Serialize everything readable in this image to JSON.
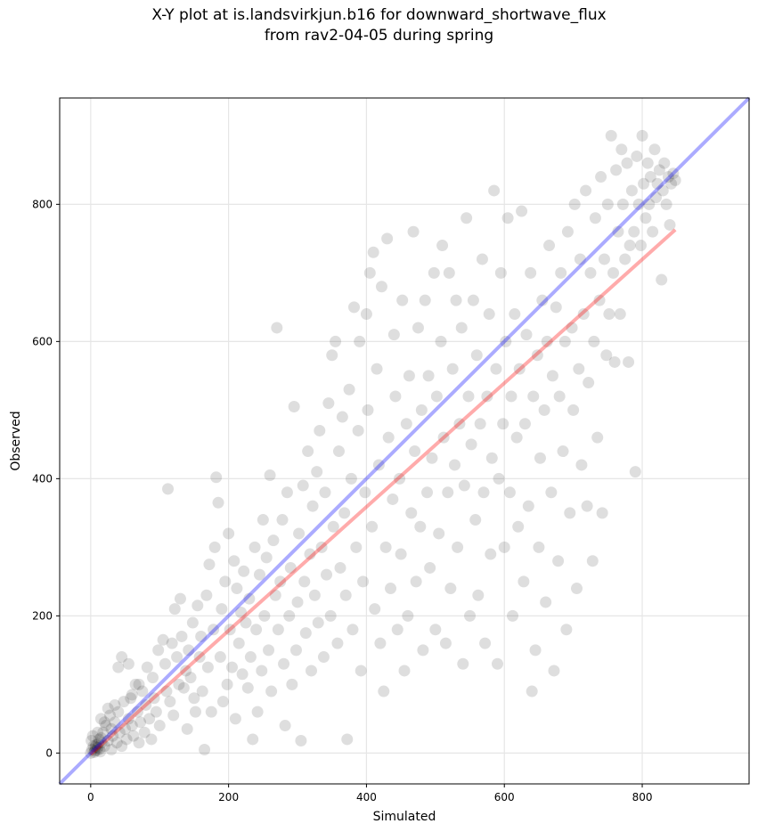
{
  "chart_data": {
    "type": "scatter",
    "title_line1": "X-Y plot at is.landsvirkjun.b16 for downward_shortwave_flux",
    "title_line2": "from rav2-04-05 during spring",
    "xlabel": "Simulated",
    "ylabel": "Observed",
    "xlim": [
      -45,
      955
    ],
    "ylim": [
      -45,
      955
    ],
    "xticks": [
      0,
      200,
      400,
      600,
      800
    ],
    "yticks": [
      0,
      200,
      400,
      600,
      800
    ],
    "grid": true,
    "point_color": "#000000",
    "point_opacity": 0.13,
    "one_to_one_line": {
      "color": "#0000ff",
      "opacity": 0.33,
      "from": [
        -45,
        -45
      ],
      "to": [
        955,
        955
      ]
    },
    "fit_line": {
      "color": "#ff0000",
      "opacity": 0.33,
      "from": [
        0,
        -2
      ],
      "to": [
        848,
        763
      ]
    },
    "points": [
      [
        0,
        0
      ],
      [
        2,
        5
      ],
      [
        4,
        10
      ],
      [
        1,
        18
      ],
      [
        6,
        3
      ],
      [
        8,
        12
      ],
      [
        10,
        8
      ],
      [
        12,
        20
      ],
      [
        3,
        25
      ],
      [
        14,
        2
      ],
      [
        16,
        15
      ],
      [
        5,
        1
      ],
      [
        7,
        9
      ],
      [
        9,
        4
      ],
      [
        11,
        14
      ],
      [
        13,
        6
      ],
      [
        15,
        22
      ],
      [
        18,
        30
      ],
      [
        20,
        10
      ],
      [
        22,
        40
      ],
      [
        25,
        18
      ],
      [
        28,
        55
      ],
      [
        30,
        5
      ],
      [
        32,
        25
      ],
      [
        35,
        45
      ],
      [
        38,
        15
      ],
      [
        40,
        60
      ],
      [
        42,
        30
      ],
      [
        45,
        10
      ],
      [
        48,
        75
      ],
      [
        50,
        35
      ],
      [
        52,
        20
      ],
      [
        55,
        50
      ],
      [
        58,
        80
      ],
      [
        60,
        40
      ],
      [
        62,
        25
      ],
      [
        65,
        100
      ],
      [
        68,
        60
      ],
      [
        70,
        15
      ],
      [
        72,
        45
      ],
      [
        75,
        90
      ],
      [
        78,
        30
      ],
      [
        80,
        70
      ],
      [
        82,
        125
      ],
      [
        85,
        50
      ],
      [
        88,
        20
      ],
      [
        90,
        110
      ],
      [
        92,
        80
      ],
      [
        95,
        60
      ],
      [
        98,
        150
      ],
      [
        100,
        40
      ],
      [
        25,
        65
      ],
      [
        35,
        70
      ],
      [
        45,
        140
      ],
      [
        55,
        130
      ],
      [
        40,
        125
      ],
      [
        20,
        45
      ],
      [
        30,
        35
      ],
      [
        15,
        50
      ],
      [
        10,
        30
      ],
      [
        60,
        85
      ],
      [
        70,
        100
      ],
      [
        105,
        165
      ],
      [
        108,
        130
      ],
      [
        110,
        90
      ],
      [
        112,
        385
      ],
      [
        115,
        75
      ],
      [
        118,
        160
      ],
      [
        120,
        55
      ],
      [
        122,
        210
      ],
      [
        125,
        140
      ],
      [
        128,
        100
      ],
      [
        130,
        225
      ],
      [
        132,
        170
      ],
      [
        135,
        95
      ],
      [
        138,
        120
      ],
      [
        140,
        35
      ],
      [
        142,
        150
      ],
      [
        145,
        110
      ],
      [
        148,
        190
      ],
      [
        150,
        80
      ],
      [
        152,
        60
      ],
      [
        155,
        215
      ],
      [
        158,
        140
      ],
      [
        160,
        170
      ],
      [
        162,
        90
      ],
      [
        165,
        5
      ],
      [
        168,
        230
      ],
      [
        170,
        125
      ],
      [
        172,
        275
      ],
      [
        175,
        60
      ],
      [
        178,
        180
      ],
      [
        180,
        300
      ],
      [
        182,
        402
      ],
      [
        185,
        365
      ],
      [
        188,
        140
      ],
      [
        190,
        210
      ],
      [
        192,
        75
      ],
      [
        195,
        250
      ],
      [
        198,
        100
      ],
      [
        200,
        320
      ],
      [
        202,
        180
      ],
      [
        205,
        125
      ],
      [
        208,
        280
      ],
      [
        210,
        50
      ],
      [
        212,
        240
      ],
      [
        215,
        160
      ],
      [
        218,
        205
      ],
      [
        220,
        115
      ],
      [
        222,
        265
      ],
      [
        225,
        190
      ],
      [
        228,
        95
      ],
      [
        230,
        225
      ],
      [
        232,
        140
      ],
      [
        235,
        20
      ],
      [
        238,
        300
      ],
      [
        240,
        180
      ],
      [
        242,
        60
      ],
      [
        245,
        260
      ],
      [
        248,
        120
      ],
      [
        250,
        340
      ],
      [
        252,
        200
      ],
      [
        255,
        285
      ],
      [
        258,
        150
      ],
      [
        260,
        405
      ],
      [
        262,
        90
      ],
      [
        265,
        310
      ],
      [
        268,
        230
      ],
      [
        270,
        620
      ],
      [
        272,
        180
      ],
      [
        275,
        250
      ],
      [
        278,
        340
      ],
      [
        280,
        130
      ],
      [
        282,
        40
      ],
      [
        285,
        380
      ],
      [
        288,
        200
      ],
      [
        290,
        270
      ],
      [
        292,
        100
      ],
      [
        295,
        505
      ],
      [
        298,
        150
      ],
      [
        300,
        220
      ],
      [
        302,
        320
      ],
      [
        305,
        18
      ],
      [
        308,
        390
      ],
      [
        310,
        250
      ],
      [
        312,
        175
      ],
      [
        315,
        440
      ],
      [
        318,
        290
      ],
      [
        320,
        120
      ],
      [
        322,
        360
      ],
      [
        325,
        230
      ],
      [
        328,
        410
      ],
      [
        330,
        190
      ],
      [
        332,
        470
      ],
      [
        335,
        300
      ],
      [
        338,
        140
      ],
      [
        340,
        380
      ],
      [
        342,
        260
      ],
      [
        345,
        510
      ],
      [
        348,
        200
      ],
      [
        350,
        580
      ],
      [
        352,
        330
      ],
      [
        355,
        600
      ],
      [
        358,
        160
      ],
      [
        360,
        440
      ],
      [
        362,
        270
      ],
      [
        365,
        490
      ],
      [
        368,
        350
      ],
      [
        370,
        230
      ],
      [
        372,
        20
      ],
      [
        375,
        530
      ],
      [
        378,
        400
      ],
      [
        380,
        180
      ],
      [
        382,
        650
      ],
      [
        385,
        300
      ],
      [
        388,
        470
      ],
      [
        390,
        600
      ],
      [
        392,
        120
      ],
      [
        395,
        250
      ],
      [
        398,
        380
      ],
      [
        400,
        640
      ],
      [
        402,
        500
      ],
      [
        405,
        700
      ],
      [
        408,
        330
      ],
      [
        410,
        730
      ],
      [
        412,
        210
      ],
      [
        415,
        560
      ],
      [
        418,
        420
      ],
      [
        420,
        160
      ],
      [
        422,
        680
      ],
      [
        425,
        90
      ],
      [
        428,
        300
      ],
      [
        430,
        750
      ],
      [
        432,
        460
      ],
      [
        435,
        240
      ],
      [
        438,
        370
      ],
      [
        440,
        610
      ],
      [
        442,
        520
      ],
      [
        445,
        180
      ],
      [
        448,
        400
      ],
      [
        450,
        290
      ],
      [
        452,
        660
      ],
      [
        455,
        120
      ],
      [
        458,
        480
      ],
      [
        460,
        200
      ],
      [
        462,
        550
      ],
      [
        465,
        350
      ],
      [
        468,
        760
      ],
      [
        470,
        440
      ],
      [
        472,
        250
      ],
      [
        475,
        620
      ],
      [
        478,
        330
      ],
      [
        480,
        500
      ],
      [
        482,
        150
      ],
      [
        485,
        660
      ],
      [
        488,
        380
      ],
      [
        490,
        550
      ],
      [
        492,
        270
      ],
      [
        495,
        430
      ],
      [
        498,
        700
      ],
      [
        500,
        180
      ],
      [
        502,
        520
      ],
      [
        505,
        320
      ],
      [
        508,
        600
      ],
      [
        510,
        740
      ],
      [
        512,
        460
      ],
      [
        515,
        160
      ],
      [
        518,
        380
      ],
      [
        520,
        700
      ],
      [
        522,
        240
      ],
      [
        525,
        560
      ],
      [
        528,
        420
      ],
      [
        530,
        660
      ],
      [
        532,
        300
      ],
      [
        535,
        480
      ],
      [
        538,
        620
      ],
      [
        540,
        130
      ],
      [
        542,
        390
      ],
      [
        545,
        780
      ],
      [
        548,
        520
      ],
      [
        550,
        200
      ],
      [
        552,
        450
      ],
      [
        555,
        660
      ],
      [
        558,
        340
      ],
      [
        560,
        580
      ],
      [
        562,
        230
      ],
      [
        565,
        480
      ],
      [
        568,
        720
      ],
      [
        570,
        380
      ],
      [
        572,
        160
      ],
      [
        575,
        520
      ],
      [
        578,
        640
      ],
      [
        580,
        290
      ],
      [
        582,
        430
      ],
      [
        585,
        820
      ],
      [
        588,
        560
      ],
      [
        590,
        130
      ],
      [
        592,
        400
      ],
      [
        595,
        700
      ],
      [
        598,
        480
      ],
      [
        600,
        300
      ],
      [
        602,
        600
      ],
      [
        605,
        780
      ],
      [
        608,
        380
      ],
      [
        610,
        520
      ],
      [
        612,
        200
      ],
      [
        615,
        640
      ],
      [
        618,
        460
      ],
      [
        620,
        330
      ],
      [
        622,
        560
      ],
      [
        625,
        790
      ],
      [
        628,
        250
      ],
      [
        630,
        480
      ],
      [
        632,
        610
      ],
      [
        635,
        360
      ],
      [
        638,
        700
      ],
      [
        640,
        90
      ],
      [
        642,
        520
      ],
      [
        645,
        150
      ],
      [
        648,
        580
      ],
      [
        650,
        300
      ],
      [
        652,
        430
      ],
      [
        655,
        660
      ],
      [
        658,
        500
      ],
      [
        660,
        220
      ],
      [
        662,
        600
      ],
      [
        665,
        740
      ],
      [
        668,
        380
      ],
      [
        670,
        550
      ],
      [
        672,
        120
      ],
      [
        675,
        650
      ],
      [
        678,
        280
      ],
      [
        680,
        520
      ],
      [
        682,
        700
      ],
      [
        685,
        440
      ],
      [
        688,
        600
      ],
      [
        690,
        180
      ],
      [
        692,
        760
      ],
      [
        695,
        350
      ],
      [
        698,
        620
      ],
      [
        700,
        500
      ],
      [
        702,
        800
      ],
      [
        705,
        240
      ],
      [
        708,
        560
      ],
      [
        710,
        720
      ],
      [
        712,
        420
      ],
      [
        715,
        640
      ],
      [
        718,
        820
      ],
      [
        720,
        360
      ],
      [
        722,
        540
      ],
      [
        725,
        700
      ],
      [
        728,
        280
      ],
      [
        730,
        600
      ],
      [
        732,
        780
      ],
      [
        735,
        460
      ],
      [
        738,
        660
      ],
      [
        740,
        840
      ],
      [
        742,
        350
      ],
      [
        745,
        720
      ],
      [
        748,
        580
      ],
      [
        750,
        800
      ],
      [
        752,
        640
      ],
      [
        755,
        900
      ],
      [
        758,
        700
      ],
      [
        760,
        570
      ],
      [
        762,
        850
      ],
      [
        765,
        760
      ],
      [
        768,
        640
      ],
      [
        770,
        880
      ],
      [
        772,
        800
      ],
      [
        775,
        720
      ],
      [
        778,
        860
      ],
      [
        780,
        570
      ],
      [
        782,
        740
      ],
      [
        785,
        820
      ],
      [
        788,
        760
      ],
      [
        790,
        410
      ],
      [
        792,
        870
      ],
      [
        795,
        800
      ],
      [
        798,
        740
      ],
      [
        800,
        900
      ],
      [
        802,
        830
      ],
      [
        805,
        780
      ],
      [
        808,
        860
      ],
      [
        810,
        800
      ],
      [
        812,
        840
      ],
      [
        815,
        760
      ],
      [
        818,
        880
      ],
      [
        820,
        810
      ],
      [
        822,
        830
      ],
      [
        825,
        850
      ],
      [
        828,
        690
      ],
      [
        830,
        820
      ],
      [
        832,
        860
      ],
      [
        835,
        800
      ],
      [
        838,
        840
      ],
      [
        840,
        770
      ],
      [
        842,
        830
      ],
      [
        845,
        845
      ],
      [
        848,
        835
      ]
    ]
  }
}
